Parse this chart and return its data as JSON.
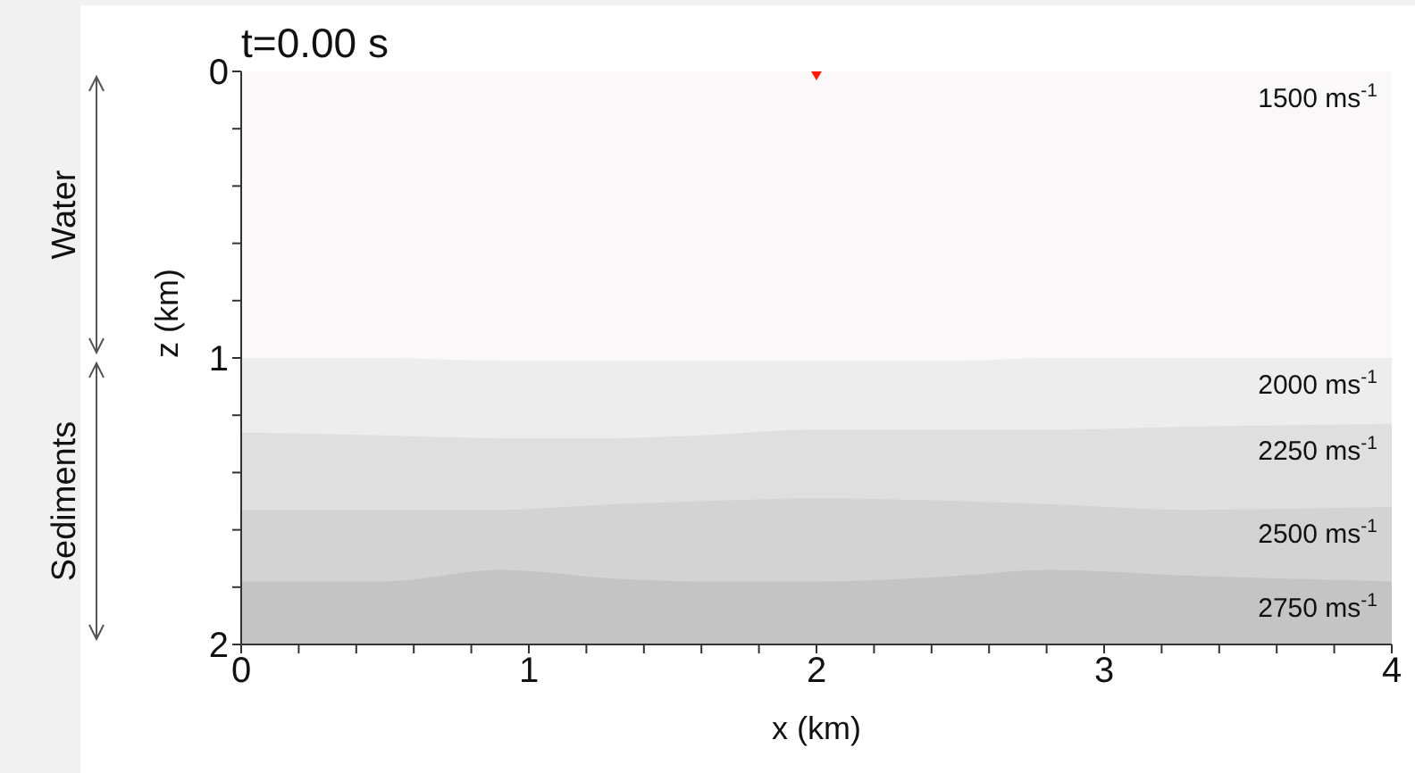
{
  "chart_data": {
    "type": "area",
    "title": "t=0.00 s",
    "xlabel": "x (km)",
    "ylabel": "z (km)",
    "x": [
      0,
      0.5,
      0.9,
      1.3,
      1.6,
      2,
      2.5,
      2.8,
      3.3,
      4
    ],
    "xlim": [
      0,
      4
    ],
    "xticks": [
      0,
      {
        "value": 0.2,
        "label": null
      },
      {
        "value": 0.4,
        "label": null
      },
      {
        "value": 0.6,
        "label": null
      },
      {
        "value": 0.8,
        "label": null
      },
      1,
      {
        "value": 1.2,
        "label": null
      },
      {
        "value": 1.4,
        "label": null
      },
      {
        "value": 1.6,
        "label": null
      },
      {
        "value": 1.8,
        "label": null
      },
      2,
      {
        "value": 2.2,
        "label": null
      },
      {
        "value": 2.4,
        "label": null
      },
      {
        "value": 2.6,
        "label": null
      },
      {
        "value": 2.8,
        "label": null
      },
      3,
      {
        "value": 3.2,
        "label": null
      },
      {
        "value": 3.4,
        "label": null
      },
      {
        "value": 3.6,
        "label": null
      },
      {
        "value": 3.8,
        "label": null
      },
      4
    ],
    "ylim": [
      2,
      0
    ],
    "yticks": [
      0,
      {
        "value": 0.2,
        "label": null
      },
      {
        "value": 0.4,
        "label": null
      },
      {
        "value": 0.6,
        "label": null
      },
      {
        "value": 0.8,
        "label": null
      },
      1,
      {
        "value": 1.2,
        "label": null
      },
      {
        "value": 1.4,
        "label": null
      },
      {
        "value": 1.6,
        "label": null
      },
      {
        "value": 1.8,
        "label": null
      },
      2
    ],
    "series": [
      {
        "name": "1500 ms$^{-1}$",
        "color": "#fbf8fa",
        "values": [
          1.0,
          1.0,
          1.01,
          1.01,
          1.01,
          1.01,
          1.01,
          1.0,
          1.0,
          1.0
        ]
      },
      {
        "name": "2000 ms$^{-1}$",
        "color": "#eeedee",
        "values": [
          0.26,
          0.27,
          0.27,
          0.27,
          0.26,
          0.24,
          0.24,
          0.25,
          0.24,
          0.23
        ]
      },
      {
        "name": "2250 ms$^{-1}$",
        "color": "#e0dfe0",
        "values": [
          0.27,
          0.26,
          0.25,
          0.23,
          0.23,
          0.24,
          0.25,
          0.26,
          0.29,
          0.29
        ]
      },
      {
        "name": "2500 ms$^{-1}$",
        "color": "#d3d3d3",
        "values": [
          0.25,
          0.25,
          0.21,
          0.26,
          0.28,
          0.29,
          0.26,
          0.23,
          0.23,
          0.26
        ]
      },
      {
        "name": "2750 ms$^{-1}$",
        "color": "#c4c4c4",
        "values": [
          0.22,
          0.22,
          0.26,
          0.23,
          0.22,
          0.22,
          0.24,
          0.26,
          0.24,
          0.22
        ]
      },
      {
        "type": "scatter",
        "x": [
          2
        ],
        "values": [
          0
        ],
        "color": "#ff1a00",
        "marker": "triangle"
      }
    ],
    "annotations": [
      "Water",
      "Sediments"
    ],
    "stacked": true,
    "legend": false,
    "grid": false
  }
}
